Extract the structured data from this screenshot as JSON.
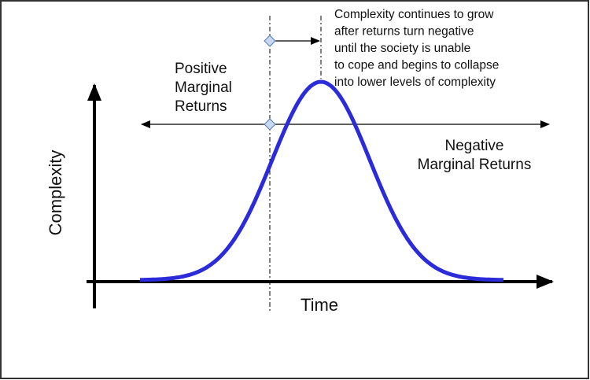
{
  "annotation": {
    "lines": [
      "Complexity continues to grow",
      "after returns turn negative",
      "until the society is unable",
      "to cope and begins to collapse",
      "into lower levels of complexity"
    ]
  },
  "left_label": {
    "lines": [
      "Positive",
      "Marginal",
      "Returns"
    ]
  },
  "right_label": {
    "lines": [
      "Negative",
      "Marginal Returns"
    ]
  },
  "axes": {
    "y_label": "Complexity",
    "x_label": "Time"
  }
}
